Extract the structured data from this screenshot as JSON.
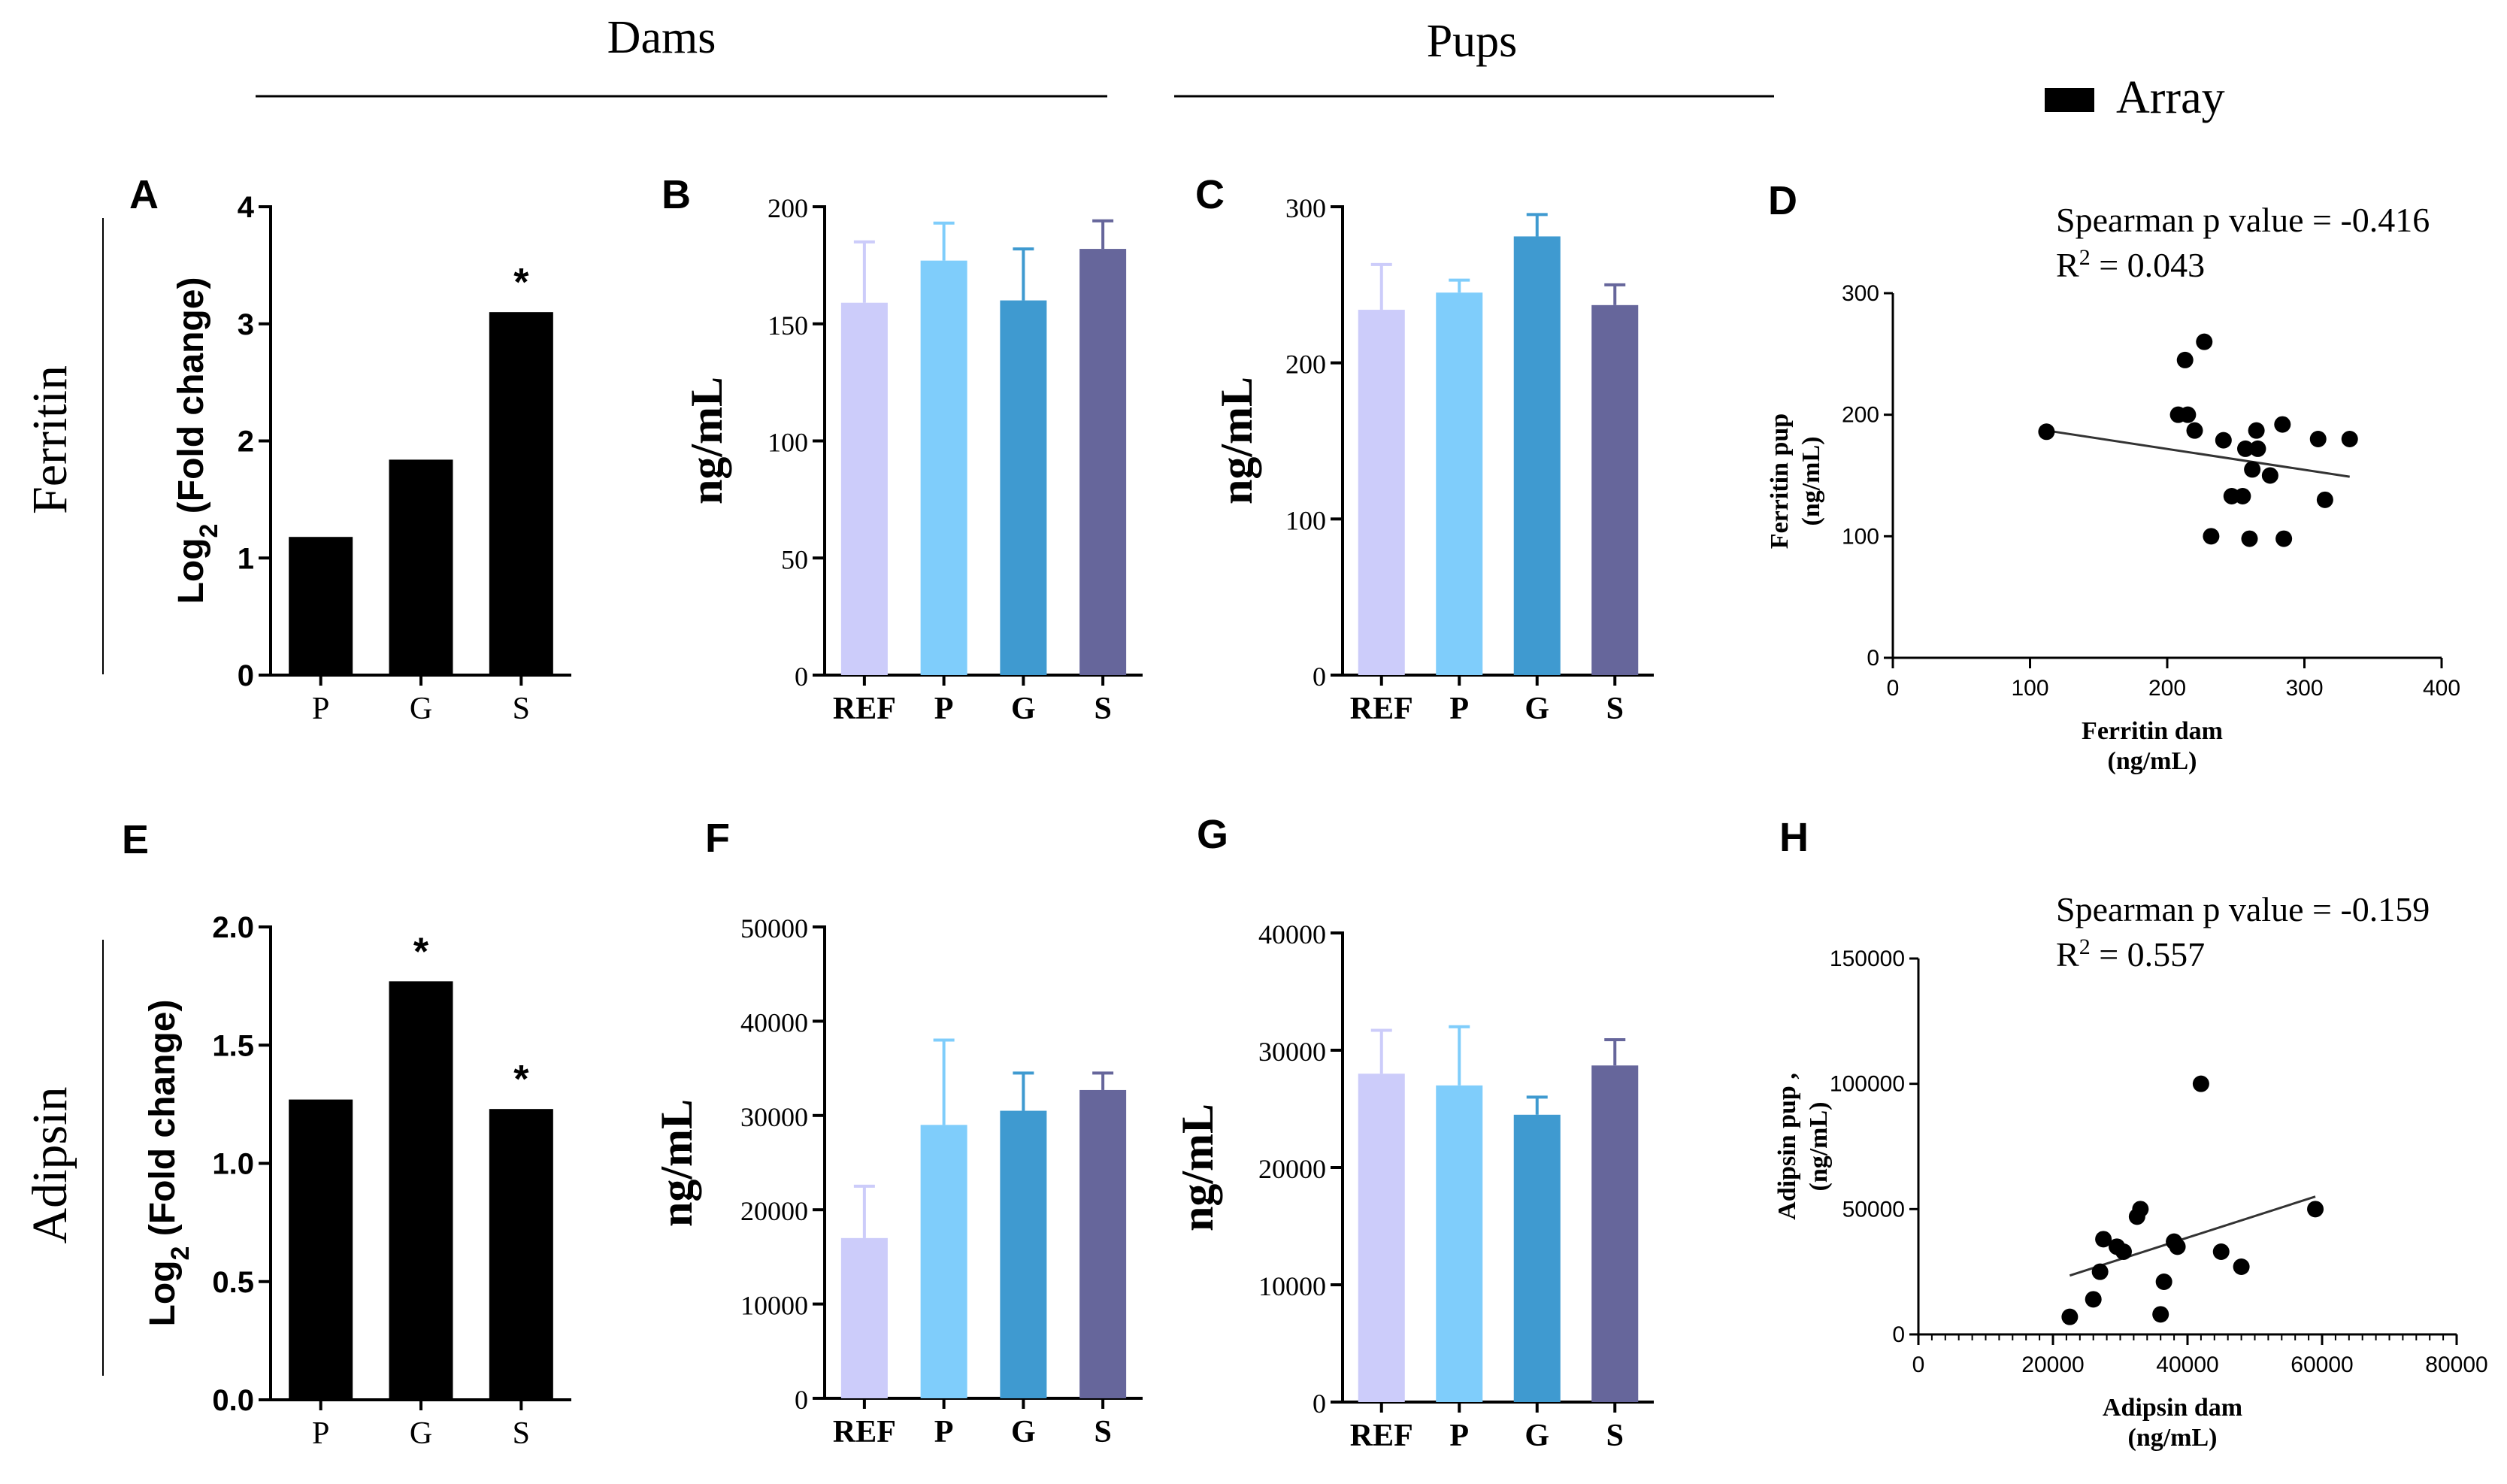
{
  "figure": {
    "dams_label": "Dams",
    "pups_label": "Pups",
    "legend_label": "Array",
    "row_labels": [
      "Ferritin",
      "Adipsin"
    ],
    "colors": {
      "black": "#000000",
      "REF": "#ccccfa",
      "P": "#7fcdfb",
      "G": "#3f9ad0",
      "S": "#66669b",
      "REF_err": "#ccccfa",
      "P_err": "#7fcdfb",
      "G_err": "#3f9ad0",
      "S_err": "#66669b"
    }
  },
  "chart_data": [
    {
      "panel": "A",
      "type": "bar",
      "ylabel_main": "Log",
      "ylabel_sub": "2",
      "ylabel_rest": " (Fold change)",
      "categories": [
        "P",
        "G",
        "S"
      ],
      "values": [
        1.18,
        1.84,
        3.1
      ],
      "significance": [
        "",
        "",
        "*"
      ],
      "ylim": [
        0,
        4
      ],
      "yticks": [
        "0",
        "1",
        "2",
        "3",
        "4"
      ]
    },
    {
      "panel": "B",
      "type": "bar",
      "ylabel": "ng/mL",
      "categories": [
        "REF",
        "P",
        "G",
        "S"
      ],
      "values": [
        159,
        177,
        160,
        182
      ],
      "errors": [
        26,
        16,
        22,
        12
      ],
      "ylim": [
        0,
        200
      ],
      "yticks": [
        "0",
        "50",
        "100",
        "150",
        "200"
      ]
    },
    {
      "panel": "C",
      "type": "bar",
      "ylabel": "ng/mL",
      "categories": [
        "REF",
        "P",
        "G",
        "S"
      ],
      "values": [
        234,
        245,
        281,
        237
      ],
      "errors": [
        29,
        8,
        14,
        13
      ],
      "ylim": [
        0,
        300
      ],
      "yticks": [
        "0",
        "100",
        "200",
        "300"
      ]
    },
    {
      "panel": "D",
      "type": "scatter",
      "spearman": "Spearman  p value = -0.416",
      "r2_prefix": "R",
      "r2_sup": "2",
      "r2_value": " = 0.043",
      "xlabel": [
        "Ferritin dam",
        "(ng/mL)"
      ],
      "ylabel": [
        "Ferritin pup",
        "(ng/mL)"
      ],
      "xlim": [
        0,
        400
      ],
      "ylim": [
        0,
        300
      ],
      "xticks": [
        "0",
        "100",
        "200",
        "300",
        "400"
      ],
      "yticks": [
        "0",
        "100",
        "200",
        "300"
      ],
      "points": [
        [
          112,
          186
        ],
        [
          208,
          200
        ],
        [
          213,
          245
        ],
        [
          215,
          200
        ],
        [
          220,
          187
        ],
        [
          227,
          260
        ],
        [
          232,
          100
        ],
        [
          241,
          179
        ],
        [
          247,
          133
        ],
        [
          255,
          133
        ],
        [
          257,
          172
        ],
        [
          260,
          98
        ],
        [
          262,
          155
        ],
        [
          265,
          187
        ],
        [
          266,
          172
        ],
        [
          275,
          150
        ],
        [
          284,
          192
        ],
        [
          285,
          98
        ],
        [
          310,
          180
        ],
        [
          315,
          130
        ],
        [
          333,
          180
        ]
      ],
      "fit": [
        [
          112,
          187
        ],
        [
          333,
          149
        ]
      ]
    },
    {
      "panel": "E",
      "type": "bar",
      "ylabel_main": "Log",
      "ylabel_sub": "2",
      "ylabel_rest": " (Fold change)",
      "categories": [
        "P",
        "G",
        "S"
      ],
      "values": [
        1.27,
        1.77,
        1.23
      ],
      "significance": [
        "",
        "*",
        "*"
      ],
      "ylim": [
        0,
        2
      ],
      "yticks": [
        "0.0",
        "0.5",
        "1.0",
        "1.5",
        "2.0"
      ]
    },
    {
      "panel": "F",
      "type": "bar",
      "ylabel": "ng/mL",
      "categories": [
        "REF",
        "P",
        "G",
        "S"
      ],
      "values": [
        17000,
        29000,
        30500,
        32700
      ],
      "errors": [
        5500,
        9000,
        4000,
        1800
      ],
      "ylim": [
        0,
        50000
      ],
      "yticks": [
        "0",
        "10000",
        "20000",
        "30000",
        "40000",
        "50000"
      ]
    },
    {
      "panel": "G",
      "type": "bar",
      "ylabel": "ng/mL",
      "categories": [
        "REF",
        "P",
        "G",
        "S"
      ],
      "values": [
        28000,
        27000,
        24500,
        28700
      ],
      "errors": [
        3700,
        5000,
        1500,
        2200
      ],
      "ylim": [
        0,
        40000
      ],
      "yticks": [
        "0",
        "10000",
        "20000",
        "30000",
        "40000"
      ]
    },
    {
      "panel": "H",
      "type": "scatter",
      "spearman": "Spearman  p value = -0.159",
      "r2_prefix": "R",
      "r2_sup": "2",
      "r2_value": " = 0.557",
      "xlabel": [
        "Adipsin dam",
        "(ng/mL)"
      ],
      "ylabel": [
        "Adipsin pup ,",
        "(ng/mL)"
      ],
      "xlim": [
        0,
        80000
      ],
      "ylim": [
        0,
        150000
      ],
      "xticks": [
        "0",
        "20000",
        "40000",
        "60000",
        "80000"
      ],
      "yticks": [
        "0",
        "50000",
        "100000",
        "150000"
      ],
      "points": [
        [
          22500,
          7000
        ],
        [
          26000,
          14000
        ],
        [
          27000,
          25000
        ],
        [
          27500,
          38000
        ],
        [
          29500,
          35000
        ],
        [
          30500,
          33000
        ],
        [
          32500,
          47000
        ],
        [
          33000,
          50000
        ],
        [
          36000,
          8000
        ],
        [
          36500,
          21000
        ],
        [
          38000,
          37000
        ],
        [
          38500,
          35000
        ],
        [
          42000,
          100000
        ],
        [
          45000,
          33000
        ],
        [
          48000,
          27000
        ],
        [
          59000,
          50000
        ]
      ],
      "fit": [
        [
          22500,
          23500
        ],
        [
          59000,
          55000
        ]
      ]
    }
  ]
}
